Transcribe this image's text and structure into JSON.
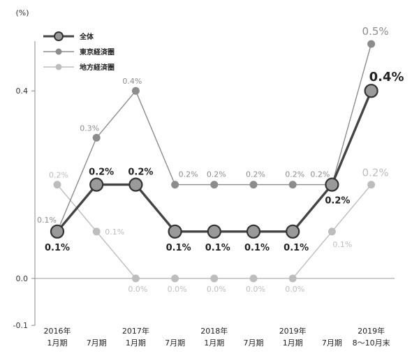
{
  "chart_data": {
    "type": "line",
    "ylabel": "(%)",
    "ylim": [
      -0.1,
      0.5
    ],
    "yticks": [
      {
        "value": 0.4,
        "label": "0.4"
      },
      {
        "value": 0.0,
        "label": "0.0"
      },
      {
        "value": -0.1,
        "label": "-0.1"
      }
    ],
    "categories": [
      [
        "2016年",
        "1月期"
      ],
      [
        "7月期"
      ],
      [
        "2017年",
        "1月期"
      ],
      [
        "7月期"
      ],
      [
        "2018年",
        "1月期"
      ],
      [
        "7月期"
      ],
      [
        "2019年",
        "1月期"
      ],
      [
        "7月期"
      ],
      [
        "2019年",
        "8〜10月末"
      ]
    ],
    "series": [
      {
        "name": "全体",
        "values": [
          0.1,
          0.2,
          0.2,
          0.1,
          0.1,
          0.1,
          0.1,
          0.2,
          0.4
        ],
        "labels": [
          "0.1%",
          "0.2%",
          "0.2%",
          "0.1%",
          "0.1%",
          "0.1%",
          "0.1%",
          "0.2%",
          "0.4%"
        ],
        "color": "#444444",
        "fill": "#9a9a9a"
      },
      {
        "name": "東京経済圏",
        "values": [
          0.1,
          0.3,
          0.4,
          0.2,
          0.2,
          0.2,
          0.2,
          0.2,
          0.5
        ],
        "labels": [
          "0.1%",
          "0.3%",
          "0.4%",
          "0.2%",
          "0.2%",
          "0.2%",
          "0.2%",
          "0.2%",
          "0.5%"
        ],
        "color": "#8c8c8c",
        "fill": "#8c8c8c"
      },
      {
        "name": "地方経済圏",
        "values": [
          0.2,
          0.1,
          0.0,
          0.0,
          0.0,
          0.0,
          0.0,
          0.1,
          0.2
        ],
        "labels": [
          "0.2%",
          "0.1%",
          "0.0%",
          "0.0%",
          "0.0%",
          "0.0%",
          "0.0%",
          "0.1%",
          "0.2%"
        ],
        "color": "#bdbdbd",
        "fill": "#bdbdbd"
      }
    ]
  }
}
